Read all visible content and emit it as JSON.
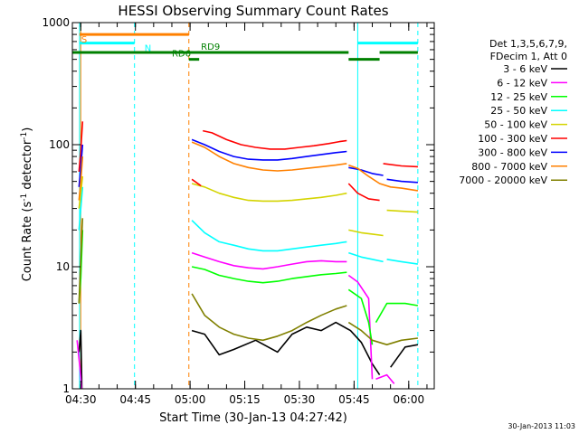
{
  "chart_data": {
    "type": "line",
    "title": "HESSI Observing Summary Count Rates",
    "xlabel": "Start Time (30-Jan-13 04:27:42)",
    "ylabel_main": "Count Rate (s",
    "ylabel_sup1": "-1",
    "ylabel_mid": " detector",
    "ylabel_sup2": "-1",
    "ylabel_end": ")",
    "y_scale": "log",
    "ylim": [
      1,
      1000
    ],
    "xlim": [
      "04:27:42",
      "06:07:00"
    ],
    "x_ticks": [
      {
        "t": "04:30",
        "label": "04:30"
      },
      {
        "t": "04:45",
        "label": "04:45"
      },
      {
        "t": "05:00",
        "label": "05:00"
      },
      {
        "t": "05:15",
        "label": "05:15"
      },
      {
        "t": "05:30",
        "label": "05:30"
      },
      {
        "t": "05:45",
        "label": "05:45"
      },
      {
        "t": "06:00",
        "label": "06:00"
      }
    ],
    "y_ticks": [
      {
        "v": 1,
        "label": "1"
      },
      {
        "v": 10,
        "label": "10"
      },
      {
        "v": 100,
        "label": "100"
      },
      {
        "v": 1000,
        "label": "1000"
      }
    ],
    "date_stamp": "30-Jan-2013 11:03",
    "legend_header": [
      "Det 1,3,5,6,7,9,",
      "FDecim 1, Att 0"
    ],
    "legend_placement": "right",
    "series": [
      {
        "name": "3 - 6 keV",
        "color": "#000000",
        "segments": [
          [
            [
              "04:29:30",
              2.0
            ],
            [
              "04:30:00",
              3.0
            ],
            [
              "04:30:30",
              0.5
            ]
          ],
          [
            [
              "05:00:30",
              3.0
            ],
            [
              "05:04:00",
              2.8
            ],
            [
              "05:08:00",
              1.9
            ],
            [
              "05:12:00",
              2.1
            ],
            [
              "05:18:00",
              2.5
            ],
            [
              "05:24:00",
              2.0
            ],
            [
              "05:28:00",
              2.8
            ],
            [
              "05:32:00",
              3.2
            ],
            [
              "05:36:00",
              3.0
            ],
            [
              "05:40:00",
              3.5
            ],
            [
              "05:44:00",
              3.0
            ],
            [
              "05:47:00",
              2.4
            ],
            [
              "05:50:00",
              1.6
            ],
            [
              "05:52:00",
              1.3
            ]
          ],
          [
            [
              "05:55:00",
              1.5
            ],
            [
              "05:59:00",
              2.2
            ],
            [
              "06:02:30",
              2.3
            ]
          ]
        ]
      },
      {
        "name": "6 - 12 keV",
        "color": "#ff00ff",
        "segments": [
          [
            [
              "04:29:00",
              2.5
            ],
            [
              "04:29:45",
              1.5
            ],
            [
              "04:30:30",
              0.8
            ]
          ],
          [
            [
              "05:00:30",
              13
            ],
            [
              "05:04:00",
              12
            ],
            [
              "05:08:00",
              11
            ],
            [
              "05:12:00",
              10.2
            ],
            [
              "05:16:00",
              9.8
            ],
            [
              "05:20:00",
              9.6
            ],
            [
              "05:24:00",
              10
            ],
            [
              "05:28:00",
              10.5
            ],
            [
              "05:32:00",
              11
            ],
            [
              "05:36:00",
              11.2
            ],
            [
              "05:40:00",
              11
            ],
            [
              "05:43:00",
              11
            ]
          ],
          [
            [
              "05:43:30",
              8.5
            ],
            [
              "05:46:00",
              7.5
            ],
            [
              "05:49:00",
              5.5
            ],
            [
              "05:50:00",
              1.2
            ]
          ],
          [
            [
              "05:51:00",
              1.2
            ],
            [
              "05:54:00",
              1.3
            ],
            [
              "05:56:00",
              1.1
            ]
          ]
        ]
      },
      {
        "name": "12 - 25 keV",
        "color": "#00ff00",
        "segments": [
          [
            [
              "04:29:30",
              5
            ],
            [
              "04:30:00",
              8
            ],
            [
              "04:30:30",
              20
            ]
          ],
          [
            [
              "05:00:30",
              10
            ],
            [
              "05:04:00",
              9.5
            ],
            [
              "05:08:00",
              8.5
            ],
            [
              "05:12:00",
              8.0
            ],
            [
              "05:16:00",
              7.6
            ],
            [
              "05:20:00",
              7.4
            ],
            [
              "05:24:00",
              7.6
            ],
            [
              "05:28:00",
              8.0
            ],
            [
              "05:32:00",
              8.3
            ],
            [
              "05:36:00",
              8.6
            ],
            [
              "05:40:00",
              8.8
            ],
            [
              "05:43:00",
              9
            ]
          ],
          [
            [
              "05:43:30",
              6.5
            ],
            [
              "05:47:00",
              5.5
            ],
            [
              "05:49:00",
              3.5
            ],
            [
              "05:50:00",
              2.3
            ]
          ],
          [
            [
              "05:51:00",
              3.5
            ],
            [
              "05:54:00",
              5.0
            ],
            [
              "05:59:00",
              5.0
            ],
            [
              "06:02:30",
              4.8
            ]
          ]
        ]
      },
      {
        "name": "25 - 50 keV",
        "color": "#00ffff",
        "segments": [
          [
            [
              "04:29:30",
              20
            ],
            [
              "04:30:00",
              30
            ],
            [
              "04:30:30",
              45
            ]
          ],
          [
            [
              "05:00:30",
              24
            ],
            [
              "05:04:00",
              19
            ],
            [
              "05:08:00",
              16
            ],
            [
              "05:12:00",
              15
            ],
            [
              "05:16:00",
              14
            ],
            [
              "05:20:00",
              13.5
            ],
            [
              "05:24:00",
              13.5
            ],
            [
              "05:28:00",
              14
            ],
            [
              "05:32:00",
              14.5
            ],
            [
              "05:36:00",
              15
            ],
            [
              "05:40:00",
              15.5
            ],
            [
              "05:43:00",
              16
            ]
          ],
          [
            [
              "05:43:30",
              13
            ],
            [
              "05:47:00",
              12
            ],
            [
              "05:50:00",
              11.5
            ],
            [
              "05:53:00",
              11
            ]
          ],
          [
            [
              "05:54:00",
              11.5
            ],
            [
              "05:58:00",
              11
            ],
            [
              "06:02:30",
              10.5
            ]
          ]
        ]
      },
      {
        "name": "50 - 100 keV",
        "color": "#d4d400",
        "segments": [
          [
            [
              "04:29:30",
              30
            ],
            [
              "04:30:00",
              40
            ],
            [
              "04:30:30",
              55
            ]
          ],
          [
            [
              "05:00:30",
              48
            ],
            [
              "05:04:00",
              45
            ],
            [
              "05:08:00",
              40
            ],
            [
              "05:12:00",
              37
            ],
            [
              "05:16:00",
              35
            ],
            [
              "05:20:00",
              34.5
            ],
            [
              "05:24:00",
              34.5
            ],
            [
              "05:28:00",
              35
            ],
            [
              "05:32:00",
              36
            ],
            [
              "05:36:00",
              37
            ],
            [
              "05:40:00",
              38.5
            ],
            [
              "05:43:00",
              40
            ]
          ],
          [
            [
              "05:43:30",
              20
            ],
            [
              "05:47:00",
              19
            ],
            [
              "05:50:00",
              18.5
            ],
            [
              "05:53:00",
              18
            ]
          ],
          [
            [
              "05:54:00",
              29
            ],
            [
              "05:58:00",
              28.5
            ],
            [
              "06:02:30",
              28
            ]
          ]
        ]
      },
      {
        "name": "100 - 300 keV",
        "color": "#ff0000",
        "segments": [
          [
            [
              "04:29:30",
              60
            ],
            [
              "04:30:00",
              90
            ],
            [
              "04:30:30",
              155
            ]
          ],
          [
            [
              "05:00:30",
              52
            ],
            [
              "05:03:00",
              46
            ]
          ],
          [
            [
              "05:03:30",
              130
            ],
            [
              "05:06:00",
              125
            ],
            [
              "05:10:00",
              110
            ],
            [
              "05:14:00",
              100
            ],
            [
              "05:18:00",
              95
            ],
            [
              "05:22:00",
              92
            ],
            [
              "05:26:00",
              92
            ],
            [
              "05:30:00",
              95
            ],
            [
              "05:34:00",
              98
            ],
            [
              "05:38:00",
              102
            ],
            [
              "05:41:00",
              106
            ],
            [
              "05:43:00",
              108
            ]
          ],
          [
            [
              "05:43:30",
              48
            ],
            [
              "05:46:00",
              40
            ],
            [
              "05:49:00",
              36
            ],
            [
              "05:52:00",
              35
            ]
          ],
          [
            [
              "05:53:00",
              70
            ],
            [
              "05:58:00",
              67
            ],
            [
              "06:02:30",
              66
            ]
          ]
        ]
      },
      {
        "name": "300 - 800 keV",
        "color": "#0000ff",
        "segments": [
          [
            [
              "04:29:30",
              45
            ],
            [
              "04:30:00",
              65
            ],
            [
              "04:30:30",
              100
            ]
          ],
          [
            [
              "05:00:30",
              110
            ],
            [
              "05:04:00",
              100
            ],
            [
              "05:08:00",
              88
            ],
            [
              "05:12:00",
              80
            ],
            [
              "05:16:00",
              76
            ],
            [
              "05:20:00",
              75
            ],
            [
              "05:24:00",
              75
            ],
            [
              "05:28:00",
              77
            ],
            [
              "05:32:00",
              80
            ],
            [
              "05:36:00",
              83
            ],
            [
              "05:40:00",
              86
            ],
            [
              "05:43:00",
              88
            ]
          ],
          [
            [
              "05:43:30",
              65
            ],
            [
              "05:47:00",
              62
            ],
            [
              "05:50:00",
              58
            ],
            [
              "05:53:00",
              56
            ]
          ],
          [
            [
              "05:54:00",
              52
            ],
            [
              "05:58:00",
              50
            ],
            [
              "06:02:30",
              49
            ]
          ]
        ]
      },
      {
        "name": "800 - 7000 keV",
        "color": "#ff8000",
        "segments": [
          [
            [
              "04:29:30",
              35
            ],
            [
              "04:30:00",
              50
            ],
            [
              "04:30:30",
              80
            ]
          ],
          [
            [
              "05:00:30",
              105
            ],
            [
              "05:04:00",
              95
            ],
            [
              "05:08:00",
              80
            ],
            [
              "05:12:00",
              70
            ],
            [
              "05:16:00",
              65
            ],
            [
              "05:20:00",
              62
            ],
            [
              "05:24:00",
              61
            ],
            [
              "05:28:00",
              62
            ],
            [
              "05:32:00",
              64
            ],
            [
              "05:36:00",
              66
            ],
            [
              "05:40:00",
              68
            ],
            [
              "05:43:00",
              70
            ]
          ],
          [
            [
              "05:43:30",
              68
            ],
            [
              "05:46:00",
              64
            ],
            [
              "05:49:00",
              55
            ],
            [
              "05:52:00",
              48
            ],
            [
              "05:55:00",
              45
            ],
            [
              "05:58:00",
              44
            ],
            [
              "06:02:30",
              42
            ]
          ]
        ]
      },
      {
        "name": "7000 - 20000 keV",
        "color": "#808000",
        "segments": [
          [
            [
              "04:29:30",
              5
            ],
            [
              "04:30:00",
              12
            ],
            [
              "04:30:30",
              25
            ]
          ],
          [
            [
              "05:00:30",
              6
            ],
            [
              "05:04:00",
              4
            ],
            [
              "05:08:00",
              3.2
            ],
            [
              "05:12:00",
              2.8
            ],
            [
              "05:16:00",
              2.6
            ],
            [
              "05:20:00",
              2.5
            ],
            [
              "05:24:00",
              2.7
            ],
            [
              "05:28:00",
              3.0
            ],
            [
              "05:32:00",
              3.5
            ],
            [
              "05:36:00",
              4.0
            ],
            [
              "05:40:00",
              4.5
            ],
            [
              "05:43:00",
              4.8
            ]
          ],
          [
            [
              "05:43:30",
              3.5
            ],
            [
              "05:47:00",
              3.0
            ],
            [
              "05:50:00",
              2.5
            ],
            [
              "05:54:00",
              2.3
            ],
            [
              "05:58:00",
              2.5
            ],
            [
              "06:02:30",
              2.6
            ]
          ]
        ]
      }
    ],
    "markers": [
      {
        "type": "vline",
        "t": "04:29:40",
        "color": "#00ffff",
        "style": "solid"
      },
      {
        "type": "vline",
        "t": "04:30:00",
        "color": "#ff8000",
        "style": "solid"
      },
      {
        "type": "vline",
        "t": "04:44:45",
        "color": "#00ffff",
        "style": "dashed"
      },
      {
        "type": "vline",
        "t": "04:59:40",
        "color": "#ff8000",
        "style": "dashed"
      },
      {
        "type": "vline",
        "t": "05:46:00",
        "color": "#00ffff",
        "style": "solid"
      },
      {
        "type": "vline",
        "t": "06:02:30",
        "color": "#00ffff",
        "style": "dashed"
      }
    ],
    "flag_bars": [
      {
        "t0": "04:29:40",
        "t1": "04:59:40",
        "level": 800,
        "color": "#ff8000",
        "label": "S",
        "label_t": "04:29:40"
      },
      {
        "t0": "04:29:40",
        "t1": "04:44:45",
        "level": 680,
        "color": "#00ffff",
        "label": "N",
        "label_t": "04:47:00"
      },
      {
        "t0": "05:46:00",
        "t1": "06:02:30",
        "level": 680,
        "color": "#00ffff",
        "label": "",
        "label_t": ""
      },
      {
        "t0": "04:27:42",
        "t1": "05:43:30",
        "level": 570,
        "color": "#008000",
        "label": "RD9",
        "label_t": "05:02:30"
      },
      {
        "t0": "04:59:40",
        "t1": "05:02:30",
        "level": 500,
        "color": "#008000",
        "label": "RD6",
        "label_t": "04:54:30"
      },
      {
        "t0": "05:43:30",
        "t1": "05:52:00",
        "level": 500,
        "color": "#008000",
        "label": "",
        "label_t": ""
      },
      {
        "t0": "05:52:00",
        "t1": "06:02:30",
        "level": 570,
        "color": "#008000",
        "label": "",
        "label_t": ""
      }
    ]
  }
}
